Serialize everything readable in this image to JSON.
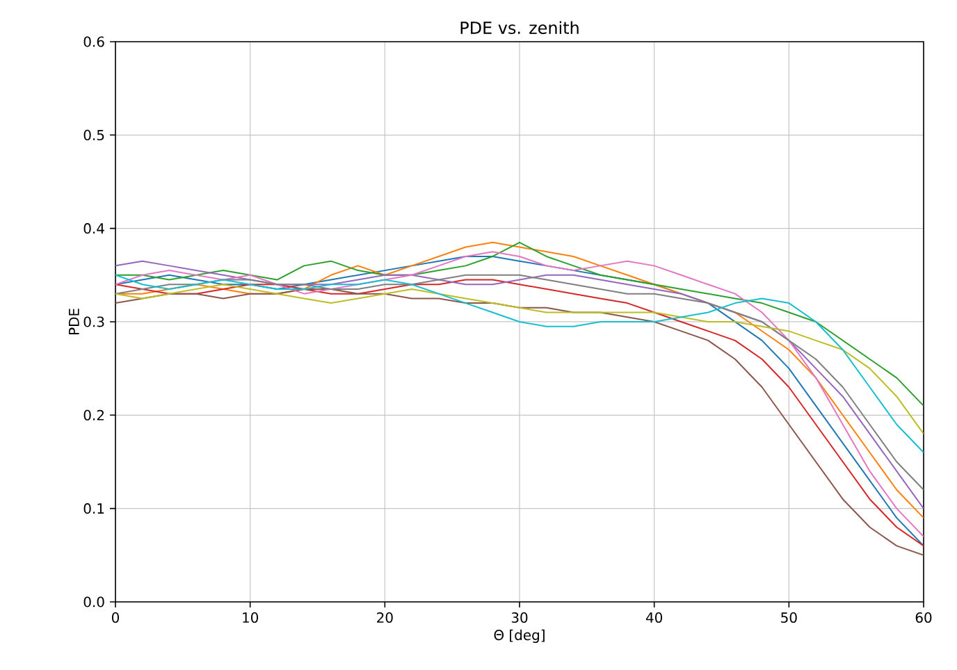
{
  "chart_data": {
    "type": "line",
    "title": "PDE vs. zenith",
    "xlabel": "Θ [deg]",
    "ylabel": "PDE",
    "xlim": [
      0,
      60
    ],
    "ylim": [
      0,
      0.6
    ],
    "xticks": [
      0,
      10,
      20,
      30,
      40,
      50,
      60
    ],
    "yticks": [
      {
        "value": 0,
        "label": "0.0"
      },
      {
        "value": 0.1,
        "label": "0.1"
      },
      {
        "value": 0.2,
        "label": "0.2"
      },
      {
        "value": 0.3,
        "label": "0.3"
      },
      {
        "value": 0.4,
        "label": "0.4"
      },
      {
        "value": 0.5,
        "label": "0.5"
      },
      {
        "value": 0.6,
        "label": "0.6"
      }
    ],
    "grid": true,
    "marker": "none",
    "line_style": "solid",
    "x": [
      0,
      2,
      4,
      6,
      8,
      10,
      12,
      14,
      16,
      18,
      20,
      22,
      24,
      26,
      28,
      30,
      32,
      34,
      36,
      38,
      40,
      42,
      44,
      46,
      48,
      50,
      52,
      54,
      56,
      58,
      60
    ],
    "series": [
      {
        "color": "#1f77b4",
        "values": [
          0.34,
          0.345,
          0.35,
          0.345,
          0.34,
          0.34,
          0.335,
          0.34,
          0.345,
          0.35,
          0.355,
          0.36,
          0.365,
          0.37,
          0.37,
          0.365,
          0.36,
          0.355,
          0.35,
          0.345,
          0.34,
          0.33,
          0.32,
          0.3,
          0.28,
          0.25,
          0.21,
          0.17,
          0.13,
          0.09,
          0.06
        ]
      },
      {
        "color": "#ff7f0e",
        "values": [
          0.33,
          0.33,
          0.335,
          0.34,
          0.335,
          0.33,
          0.33,
          0.335,
          0.35,
          0.36,
          0.35,
          0.36,
          0.37,
          0.38,
          0.385,
          0.38,
          0.375,
          0.37,
          0.36,
          0.35,
          0.34,
          0.33,
          0.32,
          0.31,
          0.29,
          0.27,
          0.24,
          0.2,
          0.16,
          0.12,
          0.09
        ]
      },
      {
        "color": "#2ca02c",
        "values": [
          0.35,
          0.35,
          0.345,
          0.35,
          0.355,
          0.35,
          0.345,
          0.36,
          0.365,
          0.355,
          0.35,
          0.35,
          0.355,
          0.36,
          0.37,
          0.385,
          0.37,
          0.36,
          0.35,
          0.345,
          0.34,
          0.335,
          0.33,
          0.325,
          0.32,
          0.31,
          0.3,
          0.28,
          0.26,
          0.24,
          0.21
        ]
      },
      {
        "color": "#d62728",
        "values": [
          0.34,
          0.335,
          0.33,
          0.33,
          0.335,
          0.34,
          0.34,
          0.335,
          0.33,
          0.33,
          0.335,
          0.34,
          0.34,
          0.345,
          0.345,
          0.34,
          0.335,
          0.33,
          0.325,
          0.32,
          0.31,
          0.3,
          0.29,
          0.28,
          0.26,
          0.23,
          0.19,
          0.15,
          0.11,
          0.08,
          0.06
        ]
      },
      {
        "color": "#9467bd",
        "values": [
          0.36,
          0.365,
          0.36,
          0.355,
          0.35,
          0.345,
          0.34,
          0.34,
          0.34,
          0.345,
          0.35,
          0.35,
          0.345,
          0.34,
          0.34,
          0.345,
          0.35,
          0.35,
          0.345,
          0.34,
          0.335,
          0.33,
          0.32,
          0.31,
          0.3,
          0.28,
          0.25,
          0.22,
          0.18,
          0.14,
          0.1
        ]
      },
      {
        "color": "#8c564b",
        "values": [
          0.32,
          0.325,
          0.33,
          0.33,
          0.325,
          0.33,
          0.33,
          0.335,
          0.335,
          0.33,
          0.33,
          0.325,
          0.325,
          0.32,
          0.32,
          0.315,
          0.315,
          0.31,
          0.31,
          0.305,
          0.3,
          0.29,
          0.28,
          0.26,
          0.23,
          0.19,
          0.15,
          0.11,
          0.08,
          0.06,
          0.05
        ]
      },
      {
        "color": "#e377c2",
        "values": [
          0.34,
          0.35,
          0.355,
          0.35,
          0.345,
          0.35,
          0.34,
          0.33,
          0.335,
          0.34,
          0.345,
          0.35,
          0.36,
          0.37,
          0.375,
          0.37,
          0.36,
          0.355,
          0.36,
          0.365,
          0.36,
          0.35,
          0.34,
          0.33,
          0.31,
          0.28,
          0.24,
          0.19,
          0.14,
          0.1,
          0.07
        ]
      },
      {
        "color": "#7f7f7f",
        "values": [
          0.33,
          0.335,
          0.34,
          0.34,
          0.345,
          0.345,
          0.34,
          0.34,
          0.335,
          0.335,
          0.34,
          0.34,
          0.345,
          0.35,
          0.35,
          0.35,
          0.345,
          0.34,
          0.335,
          0.33,
          0.33,
          0.325,
          0.32,
          0.31,
          0.3,
          0.28,
          0.26,
          0.23,
          0.19,
          0.15,
          0.12
        ]
      },
      {
        "color": "#bcbd22",
        "values": [
          0.33,
          0.325,
          0.33,
          0.335,
          0.34,
          0.335,
          0.33,
          0.325,
          0.32,
          0.325,
          0.33,
          0.335,
          0.33,
          0.325,
          0.32,
          0.315,
          0.31,
          0.31,
          0.31,
          0.31,
          0.31,
          0.305,
          0.3,
          0.3,
          0.295,
          0.29,
          0.28,
          0.27,
          0.25,
          0.22,
          0.18
        ]
      },
      {
        "color": "#17becf",
        "values": [
          0.35,
          0.34,
          0.335,
          0.34,
          0.345,
          0.34,
          0.335,
          0.335,
          0.34,
          0.34,
          0.345,
          0.34,
          0.33,
          0.32,
          0.31,
          0.3,
          0.295,
          0.295,
          0.3,
          0.3,
          0.3,
          0.305,
          0.31,
          0.32,
          0.325,
          0.32,
          0.3,
          0.27,
          0.23,
          0.19,
          0.16
        ]
      }
    ]
  }
}
